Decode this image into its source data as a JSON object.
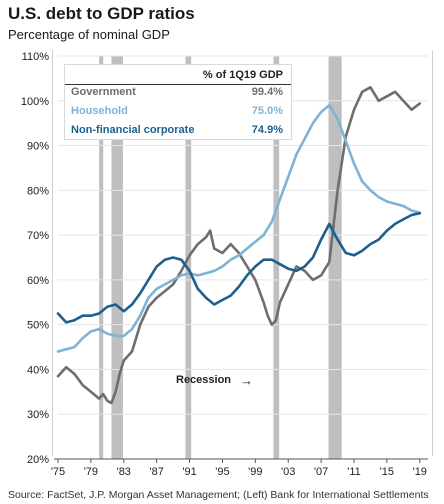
{
  "header": {
    "title": "U.S. debt to GDP ratios",
    "subtitle": "Percentage of nominal GDP"
  },
  "legend": {
    "header": "% of 1Q19 GDP",
    "rows": [
      {
        "name": "Government",
        "value": "99.4%",
        "color": "#6e6e6e"
      },
      {
        "name": "Household",
        "value": "75.0%",
        "color": "#7fb3d5"
      },
      {
        "name": "Non-financial corporate",
        "value": "74.9%",
        "color": "#1f5f8b"
      }
    ]
  },
  "annotation": {
    "recession_label": "Recession",
    "arrow": "→"
  },
  "source": "Source: FactSet, J.P. Morgan Asset Management; (Left) Bank for International Settlements",
  "chart_data": {
    "type": "line",
    "title": "U.S. debt to GDP ratios",
    "subtitle": "Percentage of nominal GDP",
    "xlabel": "",
    "ylabel": "",
    "xlim": [
      1975,
      2020
    ],
    "ylim": [
      20,
      110
    ],
    "x_tick_values": [
      1975,
      1979,
      1983,
      1987,
      1991,
      1995,
      1999,
      2003,
      2007,
      2011,
      2015,
      2019
    ],
    "x_tick_labels": [
      "'75",
      "'79",
      "'83",
      "'87",
      "'91",
      "'95",
      "'99",
      "'03",
      "'07",
      "'11",
      "'15",
      "'19"
    ],
    "y_tick_values": [
      20,
      30,
      40,
      50,
      60,
      70,
      80,
      90,
      100,
      110
    ],
    "y_tick_labels": [
      "20%",
      "30%",
      "40%",
      "50%",
      "60%",
      "70%",
      "80%",
      "90%",
      "100%",
      "110%"
    ],
    "grid": true,
    "legend_position": "top-left",
    "recessions": [
      [
        1980.0,
        1980.5
      ],
      [
        1981.5,
        1982.9
      ],
      [
        1990.5,
        1991.2
      ],
      [
        2001.2,
        2001.9
      ],
      [
        2007.9,
        2009.5
      ]
    ],
    "series": [
      {
        "name": "Government",
        "color": "#6e6e6e",
        "x": [
          1975,
          1976,
          1977,
          1978,
          1979,
          1980,
          1980.5,
          1981,
          1981.5,
          1982,
          1982.5,
          1983,
          1984,
          1985,
          1986,
          1987,
          1988,
          1989,
          1990,
          1991,
          1992,
          1993,
          1993.5,
          1994,
          1995,
          1996,
          1997,
          1998,
          1999,
          2000,
          2000.5,
          2001,
          2001.5,
          2002,
          2003,
          2004,
          2005,
          2006,
          2007,
          2008,
          2009,
          2010,
          2011,
          2012,
          2013,
          2014,
          2015,
          2016,
          2017,
          2018,
          2019
        ],
        "y": [
          38.5,
          40.5,
          39,
          36.5,
          35,
          33.5,
          34.5,
          33,
          32.5,
          35,
          39,
          42,
          44,
          50,
          54,
          56,
          57.5,
          59,
          62,
          65.5,
          68,
          69.5,
          71,
          67,
          66,
          68,
          66,
          63,
          60,
          55,
          52,
          50,
          51,
          55,
          59,
          63,
          62,
          60,
          61,
          64,
          80,
          92,
          98,
          102,
          103,
          100,
          101,
          102,
          100,
          98,
          99.4
        ]
      },
      {
        "name": "Household",
        "color": "#7fb3d5",
        "x": [
          1975,
          1976,
          1977,
          1978,
          1979,
          1980,
          1981,
          1982,
          1983,
          1984,
          1985,
          1986,
          1987,
          1988,
          1989,
          1990,
          1991,
          1992,
          1993,
          1994,
          1995,
          1996,
          1997,
          1998,
          1999,
          2000,
          2001,
          2002,
          2003,
          2004,
          2005,
          2006,
          2007,
          2008,
          2009,
          2010,
          2011,
          2012,
          2013,
          2014,
          2015,
          2016,
          2017,
          2018,
          2019
        ],
        "y": [
          44,
          44.5,
          45,
          47,
          48.5,
          49,
          48,
          47.5,
          47.5,
          49,
          52,
          56,
          58,
          59,
          60,
          61,
          61.5,
          61,
          61.5,
          62,
          63,
          64.5,
          65.5,
          67,
          68.5,
          70,
          73,
          78,
          83,
          88,
          91.5,
          95,
          97.5,
          99,
          96,
          91,
          86,
          82,
          80,
          78.5,
          77.5,
          77,
          76.5,
          75.5,
          75.0
        ]
      },
      {
        "name": "Non-financial corporate",
        "color": "#1f5f8b",
        "x": [
          1975,
          1976,
          1977,
          1978,
          1979,
          1980,
          1981,
          1982,
          1983,
          1984,
          1985,
          1986,
          1987,
          1988,
          1989,
          1990,
          1991,
          1992,
          1993,
          1994,
          1995,
          1996,
          1997,
          1998,
          1999,
          2000,
          2001,
          2002,
          2003,
          2004,
          2005,
          2006,
          2007,
          2008,
          2009,
          2010,
          2011,
          2012,
          2013,
          2014,
          2015,
          2016,
          2017,
          2018,
          2019
        ],
        "y": [
          52.5,
          50.5,
          51,
          52,
          52,
          52.5,
          54,
          54.5,
          53,
          54.5,
          57,
          60,
          63,
          64.5,
          65,
          64.5,
          62,
          58,
          56,
          54.5,
          55.5,
          56.5,
          58.5,
          61,
          63,
          64.5,
          64.5,
          63.5,
          62.5,
          62,
          63,
          65,
          69,
          72.5,
          69,
          66,
          65.5,
          66.5,
          68,
          69,
          71,
          72.5,
          73.5,
          74.5,
          74.9
        ]
      }
    ]
  }
}
